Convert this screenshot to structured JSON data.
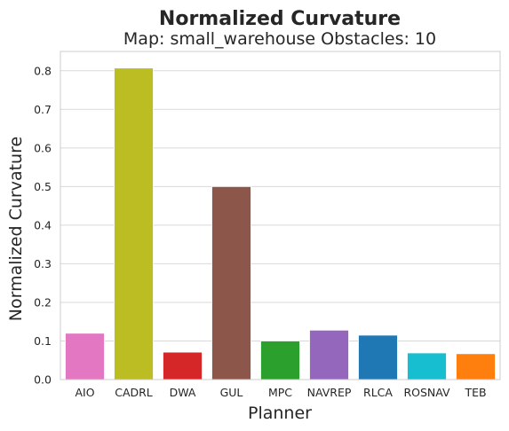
{
  "chart_data": {
    "type": "bar",
    "title": "Normalized Curvature",
    "subtitle": "Map: small_warehouse Obstacles: 10",
    "xlabel": "Planner",
    "ylabel": "Normalized Curvature",
    "categories": [
      "AIO",
      "CADRL",
      "DWA",
      "GUL",
      "MPC",
      "NAVREP",
      "RLCA",
      "ROSNAV",
      "TEB"
    ],
    "values": [
      0.12,
      0.807,
      0.071,
      0.5,
      0.1,
      0.128,
      0.115,
      0.069,
      0.067
    ],
    "colors": [
      "#e377c2",
      "#bcbd22",
      "#d62728",
      "#8c564b",
      "#2ca02c",
      "#9467bd",
      "#1f77b4",
      "#17becf",
      "#ff7f0e"
    ],
    "ylim": [
      0,
      0.85
    ],
    "yticks": [
      0.0,
      0.1,
      0.2,
      0.3,
      0.4,
      0.5,
      0.6,
      0.7,
      0.8
    ],
    "grid": true,
    "style": "whitegrid"
  }
}
